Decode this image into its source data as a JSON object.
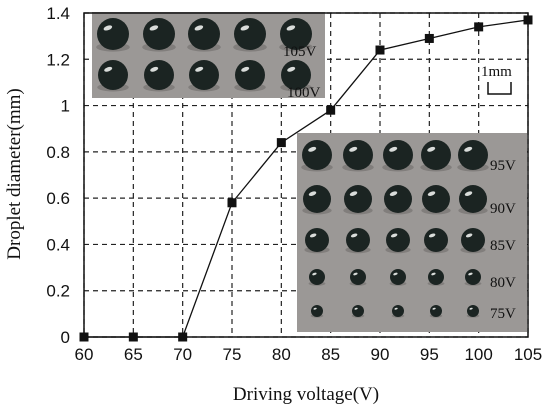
{
  "chart_data": {
    "type": "line",
    "xlabel": "Driving voltage(V)",
    "ylabel": "Droplet diameter(mm)",
    "xlim": [
      60,
      105
    ],
    "ylim": [
      0,
      1.4
    ],
    "grid": true,
    "grid_style": "dashed",
    "x_ticks": [
      "60",
      "65",
      "70",
      "75",
      "80",
      "85",
      "90",
      "95",
      "100",
      "105"
    ],
    "y_ticks": [
      "0",
      "0.2",
      "0.4",
      "0.6",
      "0.8",
      "1",
      "1.2",
      "1.4"
    ],
    "series": [
      {
        "marker": "square",
        "color": "#111111",
        "points": [
          {
            "x": 60,
            "y": 0
          },
          {
            "x": 65,
            "y": 0
          },
          {
            "x": 70,
            "y": 0
          },
          {
            "x": 75,
            "y": 0.58
          },
          {
            "x": 80,
            "y": 0.84
          },
          {
            "x": 85,
            "y": 0.98
          },
          {
            "x": 90,
            "y": 1.24
          },
          {
            "x": 95,
            "y": 1.29
          },
          {
            "x": 100,
            "y": 1.34
          },
          {
            "x": 105,
            "y": 1.37
          }
        ]
      }
    ]
  },
  "insets": {
    "top": {
      "labels": [
        "105V",
        "100V"
      ],
      "droplets_per_row": 5
    },
    "right": {
      "labels": [
        "95V",
        "90V",
        "85V",
        "80V",
        "75V"
      ],
      "droplets_per_row": 5
    },
    "scale_bar": "1mm"
  },
  "colors": {
    "inset_bg": "#9b9896",
    "droplet": "#1b2422",
    "grid": "#222222"
  }
}
